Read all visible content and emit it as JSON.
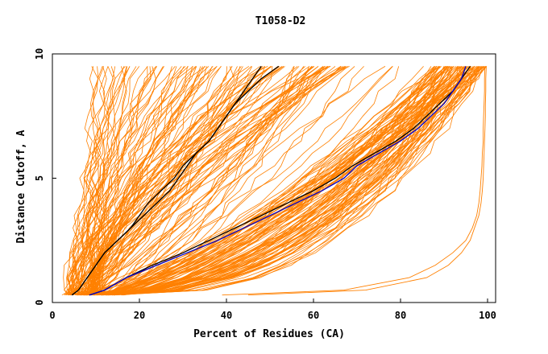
{
  "chart_data": {
    "type": "line",
    "title": "T1058-D2",
    "xlabel": "Percent of Residues (CA)",
    "ylabel": "Distance Cutoff, A",
    "xlim": [
      0,
      100
    ],
    "ylim": [
      0,
      10
    ],
    "x_ticks": [
      "0",
      "20",
      "40",
      "60",
      "80",
      "100"
    ],
    "y_ticks": [
      "0",
      "5",
      "10"
    ],
    "grid": false,
    "legend": "none",
    "colors": {
      "background_models": "#ff8000",
      "highlight_black": "#000000",
      "highlight_blue": "#0000cc",
      "axes": "#000000"
    },
    "y_cutoffs": [
      0.3,
      0.5,
      1,
      1.5,
      2,
      2.5,
      3,
      3.5,
      4,
      4.5,
      5,
      5.5,
      6,
      6.5,
      7,
      7.5,
      8,
      8.5,
      9,
      9.5
    ],
    "series": [
      {
        "color": "#000000",
        "x": [
          4.5,
          6,
          8,
          10,
          12,
          15,
          18,
          21,
          24,
          27,
          29,
          31,
          33,
          36,
          38,
          40,
          42,
          44,
          46,
          48
        ]
      },
      {
        "color": "#000000",
        "x": [
          4.5,
          6,
          8,
          10,
          12,
          15,
          18,
          20,
          22,
          25,
          28,
          30,
          33,
          36,
          38,
          40,
          42,
          45,
          48,
          52
        ]
      },
      {
        "color": "#000000",
        "x": [
          8.5,
          12,
          17,
          23,
          30,
          36,
          42,
          48,
          54,
          60,
          65,
          69,
          74,
          79,
          83,
          86,
          89,
          92,
          94,
          96
        ]
      },
      {
        "color": "#0000cc",
        "x": [
          8.5,
          12,
          17,
          24,
          31,
          38,
          44,
          50,
          56,
          62,
          67,
          70,
          75,
          80,
          84,
          87,
          90,
          92,
          94,
          95
        ]
      }
    ],
    "background_series_count": 220
  }
}
